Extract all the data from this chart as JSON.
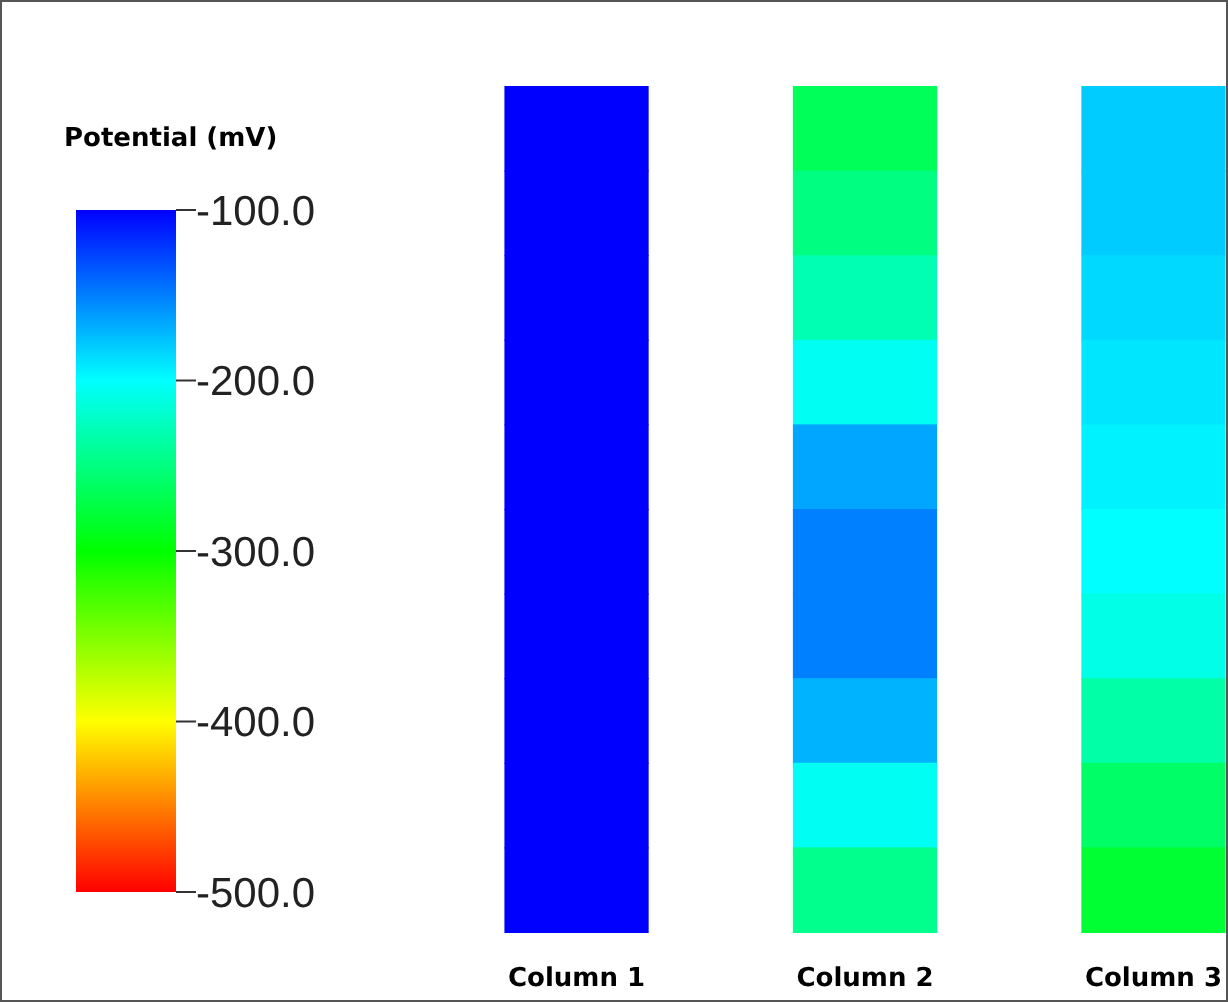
{
  "chart_data": {
    "type": "heatmap",
    "clabel": "Potential (mV)",
    "categories": [
      "Column 1",
      "Column 2",
      "Column 3"
    ],
    "y_categories": [
      null,
      null,
      null,
      null,
      null,
      null,
      null,
      null,
      null,
      null
    ],
    "cells": [
      [
        -100,
        -265,
        -180
      ],
      [
        -100,
        -250,
        -180
      ],
      [
        -100,
        -230,
        -185
      ],
      [
        -100,
        -205,
        -190
      ],
      [
        -100,
        -165,
        -195
      ],
      [
        -100,
        -150,
        -200
      ],
      [
        -100,
        -150,
        -210
      ],
      [
        -100,
        -170,
        -235
      ],
      [
        -100,
        -205,
        -260
      ],
      [
        -100,
        -245,
        -280
      ]
    ],
    "clim": [
      -500,
      -100
    ],
    "cticks": [
      {
        "value": -100,
        "label": "-100.0"
      },
      {
        "value": -200,
        "label": "-200.0"
      },
      {
        "value": -300,
        "label": "-300.0"
      },
      {
        "value": -400,
        "label": "-400.0"
      },
      {
        "value": -500,
        "label": "-500.0"
      }
    ]
  }
}
